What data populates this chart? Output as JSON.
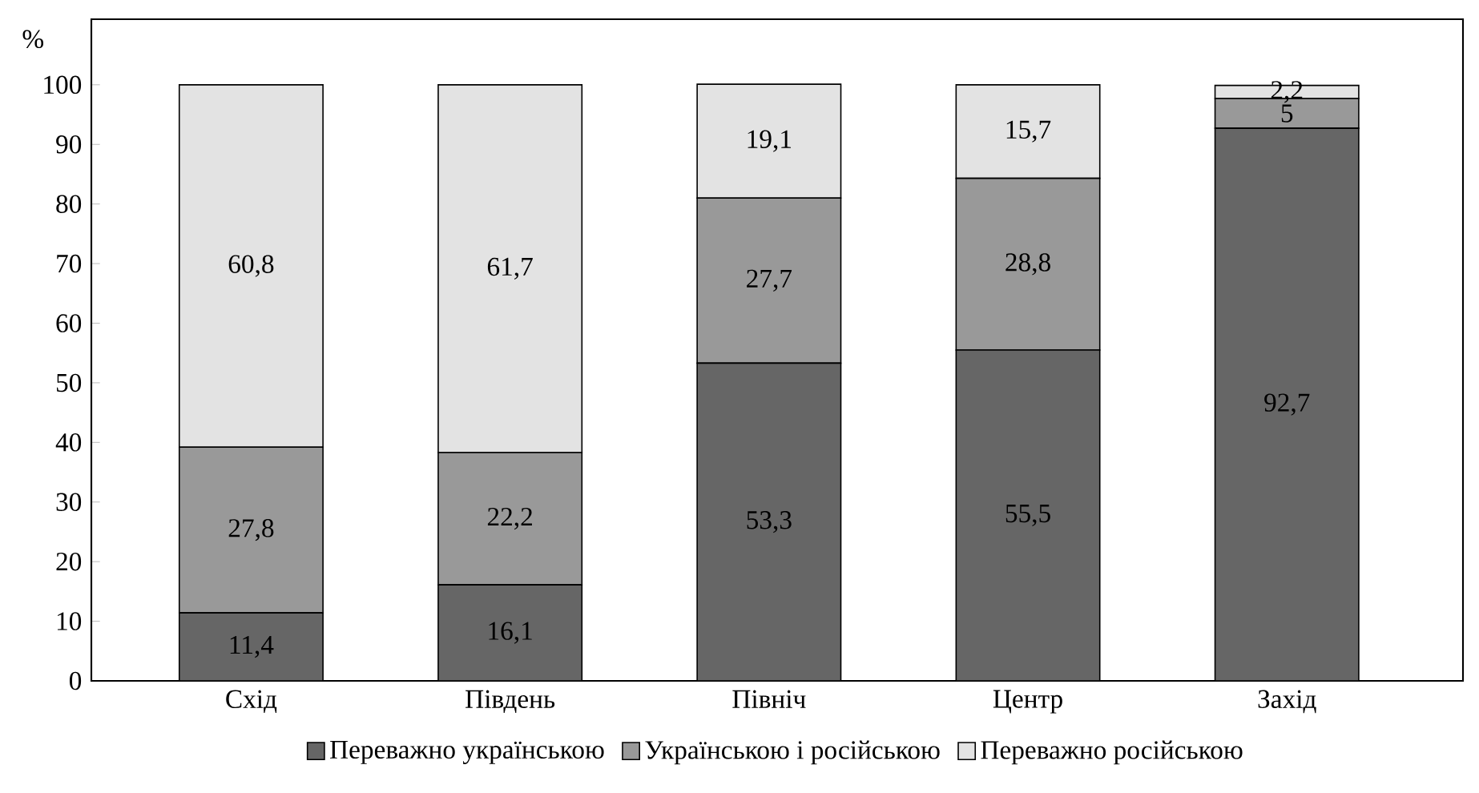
{
  "chart_data": {
    "type": "bar",
    "stacked": true,
    "ylabel": "%",
    "categories": [
      "Схід",
      "Південь",
      "Північ",
      "Центр",
      "Захід"
    ],
    "series": [
      {
        "name": "Переважно українською",
        "color": "#666666",
        "values": [
          11.4,
          16.1,
          53.3,
          55.5,
          92.7
        ],
        "value_labels": [
          "11,4",
          "16,1",
          "53,3",
          "55,5",
          "92,7"
        ]
      },
      {
        "name": "Українською і російською",
        "color": "#999999",
        "values": [
          27.8,
          22.2,
          27.7,
          28.8,
          5
        ],
        "value_labels": [
          "27,8",
          "22,2",
          "27,7",
          "28,8",
          "5"
        ]
      },
      {
        "name": "Переважно російською",
        "color": "#e3e3e3",
        "values": [
          60.8,
          61.7,
          19.1,
          15.7,
          2.2
        ],
        "value_labels": [
          "60,8",
          "61,7",
          "19,1",
          "15,7",
          "2,2"
        ]
      }
    ],
    "ylim": [
      0,
      111
    ],
    "yticks": [
      0,
      10,
      20,
      30,
      40,
      50,
      60,
      70,
      80,
      90,
      100
    ],
    "legend": "bottom"
  }
}
